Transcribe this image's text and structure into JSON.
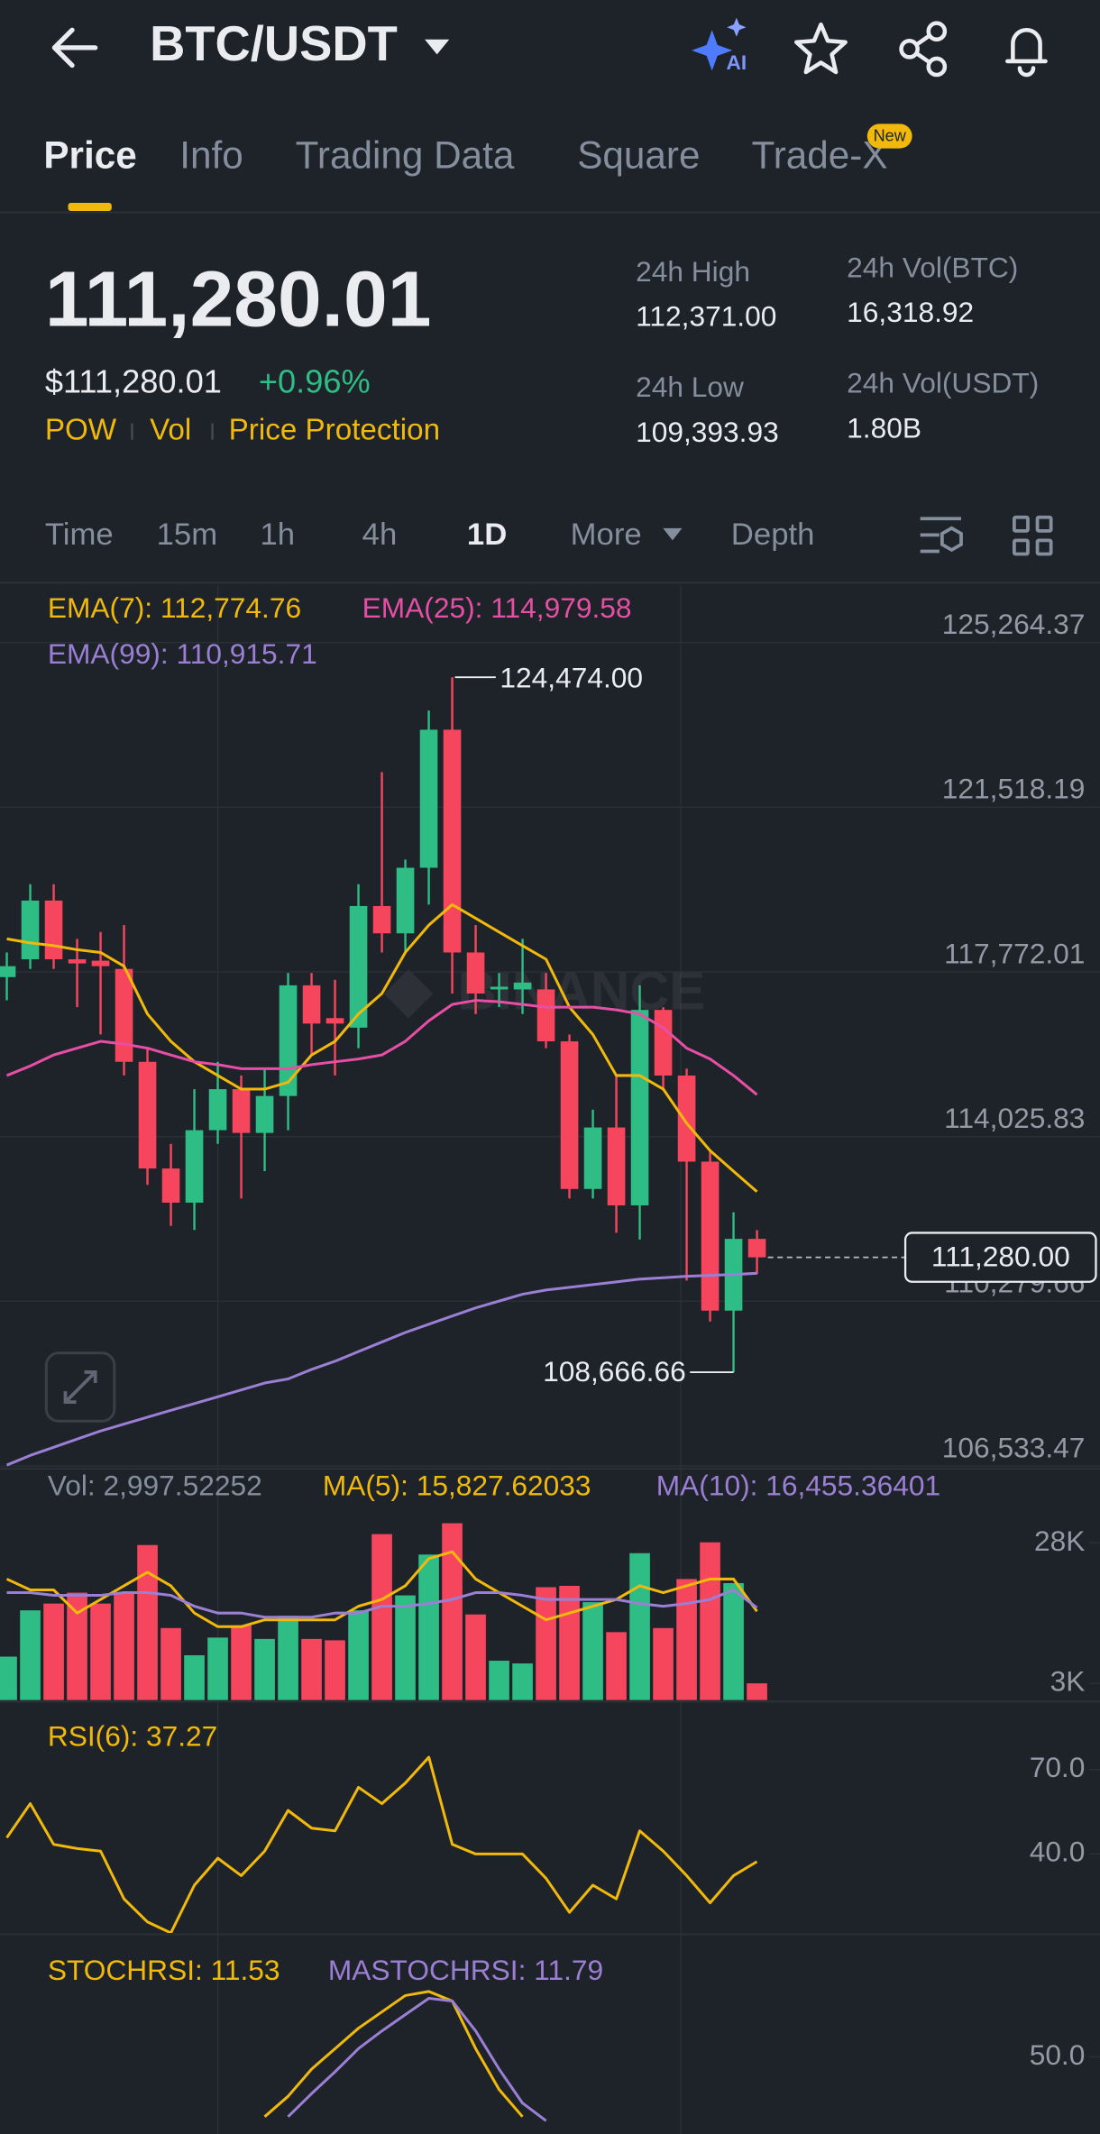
{
  "header": {
    "title": "BTC/USDT",
    "ai_label": "AI"
  },
  "tabs": {
    "items": [
      "Price",
      "Info",
      "Trading Data",
      "Square",
      "Trade-X"
    ],
    "active": 0,
    "badge": "New"
  },
  "price": {
    "last": "111,280.01",
    "usd": "$111,280.01",
    "change": "+0.96%",
    "tags": [
      "POW",
      "Vol",
      "Price Protection"
    ]
  },
  "stats": [
    {
      "label": "24h High",
      "value": "112,371.00"
    },
    {
      "label": "24h Vol(BTC)",
      "value": "16,318.92"
    },
    {
      "label": "24h Low",
      "value": "109,393.93"
    },
    {
      "label": "24h Vol(USDT)",
      "value": "1.80B"
    }
  ],
  "intervals": {
    "items": [
      "Time",
      "15m",
      "1h",
      "4h",
      "1D",
      "More",
      "Depth"
    ],
    "active": 4
  },
  "chart_data": [
    {
      "type": "candlestick",
      "watermark": "BINANCE",
      "up_color": "#2ebd85",
      "down_color": "#f6465d",
      "open": [
        117654,
        118059,
        119395,
        118059,
        118027,
        117840,
        115727,
        113301,
        112524,
        114172,
        115105,
        114110,
        114950,
        117467,
        116721,
        116504,
        119271,
        118649,
        120141,
        123281,
        118214,
        117374,
        117374,
        117374,
        116193,
        112835,
        114234,
        112462,
        116908,
        115415,
        113457,
        110068,
        111700
      ],
      "high": [
        118214,
        119768,
        119768,
        118525,
        118680,
        118836,
        116038,
        113861,
        115105,
        115727,
        115416,
        115571,
        117747,
        117747,
        117592,
        119768,
        122317,
        120328,
        123716,
        124474,
        118836,
        117747,
        118525,
        117747,
        116348,
        114638,
        115415,
        117467,
        116970,
        115571,
        113705,
        112306,
        111900
      ],
      "low": [
        117126,
        117840,
        117840,
        116970,
        116349,
        115416,
        112928,
        111995,
        111902,
        113861,
        112617,
        113240,
        114172,
        115882,
        115416,
        116038,
        118214,
        118214,
        119302,
        117281,
        116814,
        116970,
        116814,
        116037,
        112617,
        112617,
        111840,
        111684,
        115104,
        110752,
        109819,
        108666.66,
        110900
      ],
      "close": [
        117903,
        119395,
        118059,
        117965,
        117903,
        115727,
        113301,
        112524,
        114172,
        115105,
        114110,
        114950,
        117467,
        116597,
        116597,
        119271,
        118649,
        120141,
        123281,
        118214,
        117281,
        117436,
        117530,
        116193,
        112835,
        114234,
        112462,
        116908,
        115415,
        113457,
        110068,
        111700,
        111280.01
      ],
      "series": [
        {
          "name": "EMA(7): 112,774.76",
          "color": "#f0b90b",
          "values": [
            118525,
            118432,
            118369,
            118276,
            118214,
            117903,
            116815,
            116193,
            115727,
            115416,
            115105,
            115105,
            115260,
            115882,
            116193,
            116815,
            117281,
            118214,
            118836,
            119302,
            118991,
            118680,
            118369,
            118059,
            116970,
            116349,
            115416,
            115416,
            115105,
            114328,
            113706,
            113240,
            112774.76
          ]
        },
        {
          "name": "EMA(25): 114,979.58",
          "color": "#e64fa5",
          "values": [
            115416,
            115634,
            115882,
            116038,
            116193,
            116131,
            116038,
            115882,
            115727,
            115665,
            115571,
            115571,
            115571,
            115665,
            115727,
            115789,
            115882,
            116193,
            116659,
            117033,
            117126,
            117095,
            117033,
            116970,
            116970,
            116970,
            116908,
            116815,
            116504,
            116038,
            115789,
            115416,
            114979.58
          ]
        },
        {
          "name": "EMA(99): 110,915.71",
          "color": "#9b7fd4",
          "values": [
            106555,
            106773,
            106959,
            107146,
            107332,
            107488,
            107643,
            107799,
            107954,
            108110,
            108265,
            108421,
            108514,
            108732,
            108918,
            109136,
            109353,
            109571,
            109758,
            109944,
            110131,
            110286,
            110441,
            110535,
            110597,
            110659,
            110721,
            110783,
            110815,
            110850,
            110870,
            110890,
            110915.71
          ]
        }
      ],
      "ylim": [
        106502,
        126565
      ],
      "yticks": [
        {
          "value": 125264.37,
          "label": "125,264.37"
        },
        {
          "value": 121518.19,
          "label": "121,518.19"
        },
        {
          "value": 117772.01,
          "label": "117,772.01"
        },
        {
          "value": 114025.83,
          "label": "114,025.83"
        },
        {
          "value": 110279.66,
          "label": "110,279.66"
        },
        {
          "value": 106533.47,
          "label": "106,533.47"
        }
      ],
      "last_price": {
        "value": 111280,
        "label": "111,280.00"
      },
      "annotations": [
        {
          "value": 124474,
          "label": "124,474.00"
        },
        {
          "value": 108666.66,
          "label": "108,666.66"
        }
      ]
    },
    {
      "type": "bar",
      "label": "Vol: 2,997.52252",
      "values": [
        7757,
        15998,
        17210,
        19150,
        17210,
        19150,
        27634,
        12847,
        7999,
        11150,
        13332,
        10908,
        15029,
        10908,
        10666,
        15998,
        29573,
        18665,
        25937,
        31512,
        15271,
        7030,
        6545,
        20119,
        20362,
        17453,
        12120,
        26179,
        12847,
        21574,
        28118,
        20846,
        2997.52252
      ],
      "series": [
        {
          "name": "MA(5): 15,827.62033",
          "color": "#f0b90b",
          "values": [
            21574,
            19634,
            19634,
            15514,
            17938,
            20362,
            22786,
            20362,
            15514,
            13090,
            13090,
            14302,
            14302,
            14302,
            14302,
            16726,
            17938,
            20362,
            25210,
            26422,
            21574,
            19150,
            16726,
            14302,
            15514,
            16726,
            17938,
            20362,
            19150,
            20362,
            21574,
            21574,
            15827.62033
          ]
        },
        {
          "name": "MA(10): 16,455.36401",
          "color": "#9b7fd4",
          "values": [
            19150,
            19150,
            18665,
            18665,
            18665,
            19150,
            19150,
            18665,
            16726,
            15514,
            15514,
            14786,
            14786,
            14786,
            15514,
            15514,
            16726,
            16726,
            17210,
            17938,
            19150,
            19150,
            18665,
            17938,
            17938,
            17938,
            17938,
            17210,
            16726,
            17210,
            17938,
            19634,
            16455.36401
          ]
        }
      ],
      "ylim": [
        0,
        33700
      ],
      "yticks": [
        {
          "value": 28000,
          "label": "28K"
        },
        {
          "value": 3000,
          "label": "3K"
        }
      ]
    },
    {
      "type": "line",
      "series": [
        {
          "name": "RSI(6): 37.27",
          "color": "#f0b90b",
          "values": [
            45.8,
            57.9,
            43.4,
            41.9,
            41.0,
            24.0,
            15.8,
            11.9,
            28.9,
            38.5,
            32.3,
            41.0,
            55.5,
            49.2,
            48.2,
            63.7,
            57.9,
            65.2,
            74.4,
            43.4,
            40.0,
            40.0,
            40.0,
            31.3,
            19.2,
            28.9,
            24.0,
            48.2,
            41.0,
            32.3,
            22.6,
            32.3,
            37.27
          ]
        }
      ],
      "ylim": [
        11.9,
        88.4
      ],
      "yticks": [
        {
          "value": 70,
          "label": "70.0"
        },
        {
          "value": 40,
          "label": "40.0"
        }
      ]
    },
    {
      "type": "line",
      "series": [
        {
          "name": "STOCHRSI: 11.53",
          "color": "#f0b90b",
          "values": [
            null,
            null,
            null,
            null,
            null,
            null,
            null,
            null,
            null,
            null,
            null,
            6,
            21,
            41,
            56,
            71,
            83,
            95,
            98,
            91,
            56,
            26,
            6,
            null,
            null,
            null,
            null,
            null,
            null,
            null,
            null,
            null,
            null
          ]
        },
        {
          "name": "MASTOCHRSI: 11.79",
          "color": "#9b7fd4",
          "values": [
            null,
            null,
            null,
            null,
            null,
            null,
            null,
            null,
            null,
            null,
            null,
            null,
            6,
            23,
            39,
            56,
            69,
            81,
            93,
            91,
            69,
            41,
            16,
            3,
            null,
            null,
            null,
            null,
            null,
            null,
            null,
            null,
            null
          ]
        }
      ],
      "ylim": [
        -7,
        129
      ],
      "yticks": [
        {
          "value": 50,
          "label": "50.0"
        }
      ]
    }
  ]
}
